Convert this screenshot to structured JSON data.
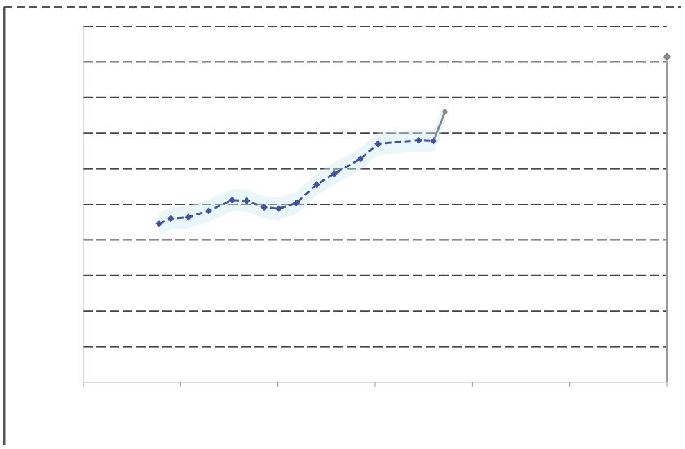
{
  "chart_data": {
    "type": "line",
    "title": "",
    "xlabel": "",
    "ylabel": "",
    "legend": {
      "position": "top-right",
      "entries": []
    },
    "ylim": [
      0,
      50
    ],
    "xlim": [
      0,
      100
    ],
    "y_ticks": [
      0,
      5,
      10,
      15,
      20,
      25,
      30,
      35,
      40,
      45,
      50
    ],
    "y_tick_labels": [],
    "x_ticks": [
      0,
      16.67,
      33.33,
      50,
      66.67,
      83.33,
      100
    ],
    "x_tick_labels": [],
    "grid": true,
    "colors": {
      "series": "#3f51a8",
      "band": "#cfeaf5",
      "trend": "#888888",
      "grid": "#444444"
    },
    "series": [
      {
        "x": [
          13,
          15,
          18,
          21.5,
          25.5,
          28,
          31,
          33.5,
          36.5,
          40,
          43,
          47.5,
          50.5,
          57.5,
          60,
          62
        ],
        "y": [
          22.3,
          23,
          23.2,
          24.1,
          25.6,
          25.5,
          24.6,
          24.4,
          25.2,
          27.8,
          29.3,
          31.4,
          33.5,
          34,
          33.9,
          38
        ]
      }
    ]
  }
}
